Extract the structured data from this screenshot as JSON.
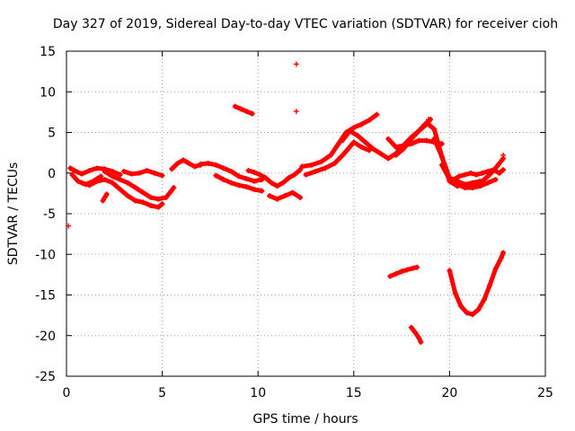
{
  "chart_data": {
    "type": "scatter",
    "title": "Day 327 of 2019, Sidereal Day-to-day VTEC variation (SDTVAR) for receiver cioh",
    "xlabel": "GPS time / hours",
    "ylabel": "SDTVAR / TECUs",
    "xlim": [
      0,
      25
    ],
    "ylim": [
      -25,
      15
    ],
    "xticks": [
      0,
      5,
      10,
      15,
      20,
      25
    ],
    "yticks": [
      -25,
      -20,
      -15,
      -10,
      -5,
      0,
      5,
      10,
      15
    ],
    "grid": true,
    "marker": "+",
    "color": "#ff0000",
    "tracks": [
      {
        "x": [
          0.2,
          0.5,
          0.8,
          1.2,
          1.6,
          2.0,
          2.4,
          2.8
        ],
        "y": [
          0.6,
          0.2,
          -0.1,
          0.3,
          0.6,
          0.5,
          0.2,
          -0.2
        ]
      },
      {
        "x": [
          0.3,
          0.6,
          1.0,
          1.4,
          1.8
        ],
        "y": [
          -0.2,
          -1.0,
          -1.4,
          -1.0,
          -0.4
        ]
      },
      {
        "x": [
          0.8,
          1.2,
          1.6,
          2.0,
          2.4,
          2.8,
          3.2,
          3.6,
          4.0,
          4.4,
          4.8,
          5.0
        ],
        "y": [
          -1.2,
          -1.5,
          -1.0,
          -0.8,
          -1.2,
          -2.0,
          -2.8,
          -3.4,
          -3.6,
          -4.0,
          -4.2,
          -3.8
        ]
      },
      {
        "x": [
          2.0,
          2.4,
          2.8,
          3.2,
          3.6,
          4.0,
          4.4,
          4.8,
          5.2,
          5.6
        ],
        "y": [
          0.2,
          -0.4,
          -0.8,
          -1.2,
          -1.8,
          -2.4,
          -3.0,
          -3.2,
          -3.0,
          -1.8
        ]
      },
      {
        "x": [
          3.0,
          3.4,
          3.8,
          4.2,
          4.6,
          5.0
        ],
        "y": [
          0.2,
          -0.1,
          0.0,
          0.3,
          0.0,
          -0.3
        ]
      },
      {
        "x": [
          1.9,
          2.0,
          2.1
        ],
        "y": [
          -3.4,
          -3.0,
          -2.6
        ]
      },
      {
        "x": [
          5.5,
          5.8,
          6.1,
          6.4,
          6.7,
          7.0
        ],
        "y": [
          0.5,
          1.2,
          1.6,
          1.2,
          0.8,
          1.0
        ]
      },
      {
        "x": [
          7.0,
          7.4,
          7.8,
          8.2,
          8.6,
          9.0,
          9.4,
          9.8,
          10.2
        ],
        "y": [
          1.1,
          1.2,
          1.0,
          0.6,
          0.2,
          -0.4,
          -0.7,
          -1.0,
          -0.8
        ]
      },
      {
        "x": [
          7.8,
          8.2,
          8.6,
          9.0,
          9.4,
          9.8,
          10.2
        ],
        "y": [
          -0.3,
          -0.8,
          -1.2,
          -1.5,
          -1.7,
          -2.0,
          -2.2
        ]
      },
      {
        "x": [
          9.5,
          9.8,
          10.1,
          10.4,
          10.7,
          11.0,
          11.3,
          11.6,
          11.9,
          12.2
        ],
        "y": [
          0.3,
          0.1,
          -0.2,
          -0.6,
          -1.2,
          -1.6,
          -1.2,
          -0.6,
          -0.2,
          0.4
        ]
      },
      {
        "x": [
          10.6,
          11.0,
          11.4,
          11.8,
          12.2
        ],
        "y": [
          -2.8,
          -3.2,
          -2.8,
          -2.4,
          -3.0
        ]
      },
      {
        "x": [
          12.3,
          12.8,
          13.3,
          13.8,
          14.2,
          14.6,
          15.0,
          15.4,
          15.8,
          16.2
        ],
        "y": [
          0.8,
          1.0,
          1.4,
          2.2,
          3.6,
          5.0,
          5.6,
          6.0,
          6.5,
          7.2
        ]
      },
      {
        "x": [
          12.5,
          13.0,
          13.5,
          14.0,
          14.5,
          15.0,
          15.4,
          15.8
        ],
        "y": [
          -0.2,
          0.2,
          0.6,
          1.2,
          2.4,
          3.8,
          3.2,
          2.8
        ]
      },
      {
        "x": [
          14.4,
          14.8,
          15.2,
          15.6,
          16.0,
          16.4,
          16.8,
          17.2,
          17.6,
          18.0,
          18.4,
          18.8,
          19.0
        ],
        "y": [
          4.0,
          5.2,
          4.6,
          3.8,
          3.0,
          2.4,
          1.8,
          2.4,
          3.4,
          4.4,
          5.2,
          6.0,
          6.6
        ]
      },
      {
        "x": [
          16.8,
          17.2,
          17.6,
          18.0,
          18.4,
          18.8,
          19.2,
          19.6
        ],
        "y": [
          4.2,
          3.2,
          3.4,
          3.6,
          4.0,
          4.0,
          3.8,
          3.6
        ]
      },
      {
        "x": [
          17.2,
          17.6,
          18.0,
          18.4,
          18.8,
          19.2,
          19.6,
          20.0,
          20.4,
          20.8,
          21.2,
          21.6
        ],
        "y": [
          2.2,
          3.0,
          4.2,
          5.2,
          6.2,
          5.4,
          2.0,
          -1.0,
          -1.6,
          -1.4,
          -1.2,
          -1.0
        ]
      },
      {
        "x": [
          19.2,
          19.6,
          20.0,
          20.4,
          20.8,
          21.2,
          21.6,
          22.0,
          22.4,
          22.8
        ],
        "y": [
          4.2,
          2.0,
          -0.6,
          -1.0,
          -1.4,
          -1.6,
          -1.2,
          -0.4,
          0.6,
          1.8
        ]
      },
      {
        "x": [
          19.6,
          20.0,
          20.4,
          20.8,
          21.2,
          21.6,
          22.0,
          22.4
        ],
        "y": [
          1.0,
          -0.8,
          -1.4,
          -1.8,
          -1.8,
          -1.6,
          -1.2,
          -0.8
        ]
      },
      {
        "x": [
          20.2,
          20.5,
          20.8,
          21.1,
          21.4,
          21.7,
          22.0,
          22.3,
          22.6,
          22.8
        ],
        "y": [
          -0.8,
          -0.4,
          -0.2,
          0.0,
          -0.2,
          0.0,
          0.2,
          0.4,
          0.0,
          0.4
        ]
      },
      {
        "x": [
          8.8,
          9.1,
          9.4,
          9.7
        ],
        "y": [
          8.2,
          7.9,
          7.6,
          7.3
        ]
      },
      {
        "x": [
          16.9,
          17.2,
          17.5,
          17.8,
          18.1,
          18.3
        ],
        "y": [
          -12.7,
          -12.4,
          -12.1,
          -11.9,
          -11.7,
          -11.6
        ]
      },
      {
        "x": [
          18.0,
          18.2,
          18.4,
          18.5
        ],
        "y": [
          -19.0,
          -19.6,
          -20.3,
          -20.8
        ]
      },
      {
        "x": [
          20.0,
          20.3,
          20.6,
          20.9,
          21.2,
          21.5,
          21.8,
          22.1,
          22.4,
          22.7,
          22.8
        ],
        "y": [
          -12.0,
          -14.8,
          -16.4,
          -17.2,
          -17.4,
          -16.8,
          -15.6,
          -13.8,
          -11.8,
          -10.4,
          -9.8
        ]
      }
    ],
    "isolated_points": [
      {
        "x": 12.0,
        "y": 13.4
      },
      {
        "x": 12.0,
        "y": 7.6
      },
      {
        "x": 0.1,
        "y": -6.5
      },
      {
        "x": 16.2,
        "y": 7.2
      },
      {
        "x": 18.9,
        "y": 6.6
      },
      {
        "x": 22.8,
        "y": 2.2
      }
    ]
  }
}
